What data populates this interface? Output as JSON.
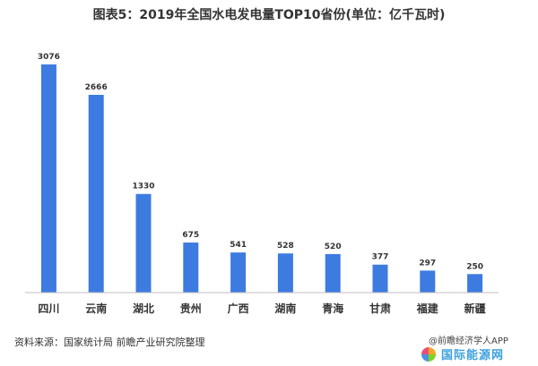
{
  "chart_data": {
    "type": "bar",
    "title": "图表5：2019年全国水电发电量TOP10省份(单位：亿千瓦时)",
    "categories": [
      "四川",
      "云南",
      "湖北",
      "贵州",
      "广西",
      "湖南",
      "青海",
      "甘肃",
      "福建",
      "新疆"
    ],
    "values": [
      3076,
      2666,
      1330,
      675,
      541,
      528,
      520,
      377,
      297,
      250
    ],
    "value_labels": [
      "3076",
      "2666",
      "1330",
      "675",
      "541",
      "528",
      "520",
      "377",
      "297",
      "250"
    ],
    "xlabel": "",
    "ylabel": "",
    "ylim": [
      0,
      3076
    ],
    "grid": false,
    "legend": "none",
    "bar_color": "#3d7be0",
    "axis_color": "#bfbfbf"
  },
  "source": "资料来源：国家统计局 前瞻产业研究院整理",
  "brand": {
    "app": "@前瞻经济学人APP",
    "logo_text": "国际能源网"
  }
}
